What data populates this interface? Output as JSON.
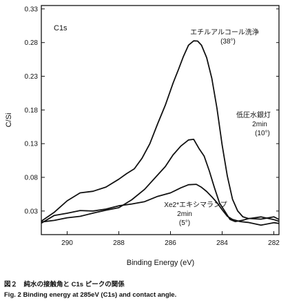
{
  "chart_data": {
    "type": "line",
    "ylabel": "C/Si",
    "xlabel": "Binding Energy (eV)",
    "xlim": [
      291,
      281.8
    ],
    "ylim": [
      -0.005,
      0.335
    ],
    "x_reversed": true,
    "xticks": [
      290,
      288,
      286,
      284,
      282
    ],
    "yticks": [
      0.03,
      0.08,
      0.13,
      0.18,
      0.23,
      0.28,
      0.33
    ],
    "grid": false,
    "panel_label": "C1s",
    "series": [
      {
        "name": "エチルアルコール洗浄",
        "note": "(38°)",
        "x": [
          291,
          290.5,
          290,
          289.5,
          289,
          288.5,
          288,
          287.7,
          287.4,
          287.1,
          286.8,
          286.5,
          286.2,
          285.9,
          285.7,
          285.5,
          285.3,
          285.1,
          284.95,
          284.8,
          284.6,
          284.4,
          284.2,
          284.0,
          283.8,
          283.6,
          283.4,
          283.2,
          283.0,
          282.5,
          282.0,
          281.8
        ],
        "values": [
          0.015,
          0.025,
          0.045,
          0.055,
          0.058,
          0.064,
          0.075,
          0.085,
          0.095,
          0.11,
          0.13,
          0.16,
          0.19,
          0.22,
          0.24,
          0.258,
          0.273,
          0.281,
          0.28,
          0.275,
          0.255,
          0.225,
          0.18,
          0.13,
          0.085,
          0.05,
          0.032,
          0.025,
          0.022,
          0.02,
          0.018,
          0.015
        ]
      },
      {
        "name": "低圧水銀灯",
        "note1": "2min",
        "note2": "(10°)",
        "x": [
          291,
          290.5,
          290,
          289.5,
          289,
          288.5,
          288,
          287.5,
          287,
          286.5,
          286.2,
          285.9,
          285.6,
          285.3,
          285.1,
          284.9,
          284.7,
          284.5,
          284.3,
          284.1,
          283.9,
          283.7,
          283.5,
          283.2,
          283.0,
          282.5,
          282.0,
          281.8
        ],
        "values": [
          0.012,
          0.018,
          0.022,
          0.025,
          0.03,
          0.033,
          0.038,
          0.048,
          0.06,
          0.08,
          0.095,
          0.11,
          0.125,
          0.133,
          0.133,
          0.125,
          0.112,
          0.09,
          0.065,
          0.045,
          0.03,
          0.02,
          0.015,
          0.015,
          0.016,
          0.018,
          0.016,
          0.012
        ]
      },
      {
        "name": "Xe2*エキシマランプ",
        "note1": "2min",
        "note2": "(5°)",
        "x": [
          291,
          290.5,
          290,
          289.5,
          289,
          288.5,
          288,
          287.5,
          287,
          286.5,
          286,
          285.6,
          285.3,
          285.0,
          284.8,
          284.6,
          284.4,
          284.2,
          284.0,
          283.8,
          283.6,
          283.3,
          283.0,
          282.5,
          282.0,
          281.8
        ],
        "values": [
          0.015,
          0.02,
          0.025,
          0.028,
          0.03,
          0.032,
          0.035,
          0.04,
          0.045,
          0.052,
          0.06,
          0.066,
          0.07,
          0.07,
          0.067,
          0.06,
          0.05,
          0.04,
          0.03,
          0.02,
          0.015,
          0.012,
          0.012,
          0.012,
          0.013,
          0.012
        ]
      }
    ]
  },
  "captions": {
    "jp": "図２　純水の接触角と C1s ピークの関係",
    "en": "Fig. 2  Binding energy at 285eV (C1s) and contact angle."
  }
}
